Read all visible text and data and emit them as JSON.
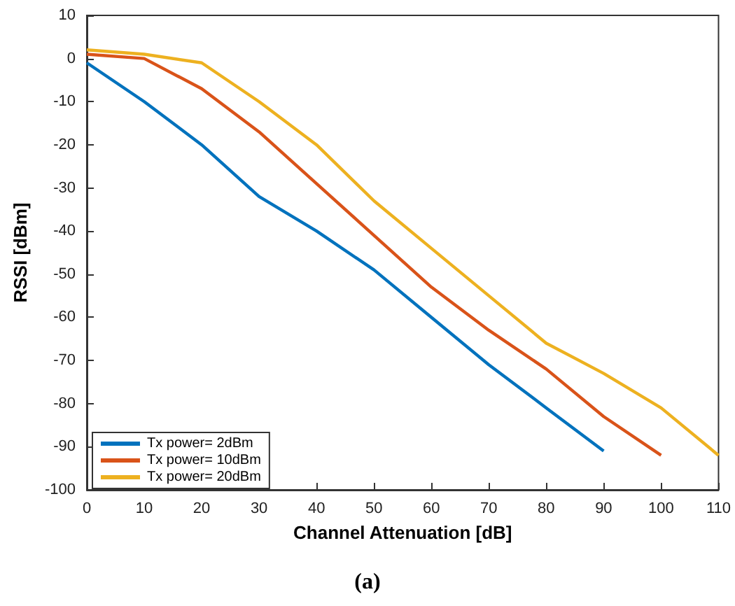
{
  "chart_data": {
    "type": "line",
    "title": "(a)",
    "xlabel": "Channel Attenuation [dB]",
    "ylabel": "RSSI [dBm]",
    "x": [
      0,
      10,
      20,
      30,
      40,
      50,
      60,
      70,
      80,
      90,
      100,
      110
    ],
    "series": [
      {
        "name": "Tx power= 2dBm",
        "color": "#0072bd",
        "values": [
          -1,
          -10,
          -20,
          -32,
          -40,
          -49,
          -60,
          -71,
          -81,
          -91,
          null,
          null
        ]
      },
      {
        "name": "Tx power= 10dBm",
        "color": "#d95319",
        "values": [
          1,
          0,
          -7,
          -17,
          -29,
          -41,
          -53,
          -63,
          -72,
          -83,
          -92,
          null
        ]
      },
      {
        "name": "Tx power= 20dBm",
        "color": "#edb120",
        "values": [
          2,
          1,
          -1,
          -10,
          -20,
          -33,
          -44,
          -55,
          -66,
          -73,
          -81,
          -92
        ]
      }
    ],
    "xlim": [
      0,
      110
    ],
    "xticks": [
      0,
      10,
      20,
      30,
      40,
      50,
      60,
      70,
      80,
      90,
      100,
      110
    ],
    "ylim": [
      -100,
      10
    ],
    "yticks": [
      -100,
      -90,
      -80,
      -70,
      -60,
      -50,
      -40,
      -30,
      -20,
      -10,
      0,
      10
    ],
    "grid": false,
    "legend": "bottom left",
    "marker": "none",
    "line_style": "solid"
  }
}
